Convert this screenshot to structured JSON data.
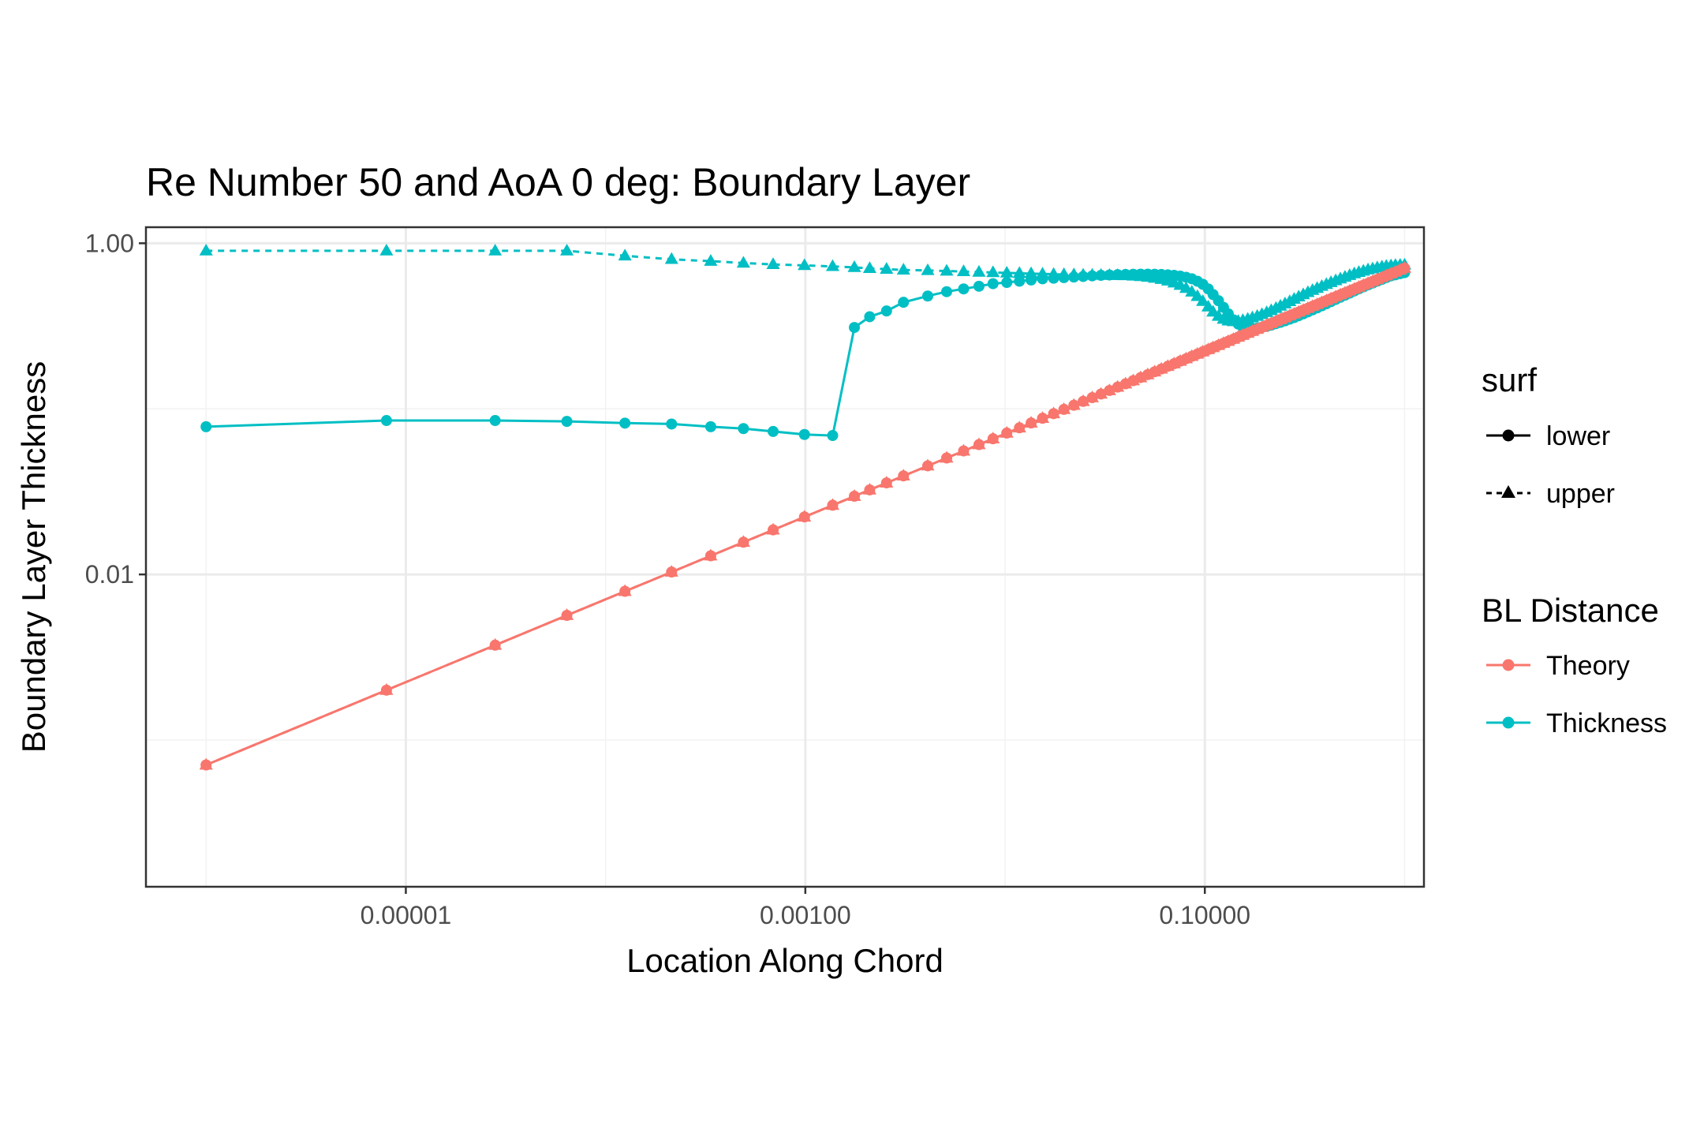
{
  "chart_data": {
    "type": "line",
    "title": "Re Number 50 and AoA 0 deg: Boundary Layer",
    "xlabel": "Location Along Chord",
    "ylabel": "Boundary Layer Thickness",
    "x_scale": "log10",
    "y_scale": "log10",
    "xlim": [
      5e-07,
      1.25
    ],
    "ylim": [
      0.00013,
      1.25
    ],
    "x_ticks": [
      1e-05,
      0.001,
      0.1
    ],
    "x_tick_labels": [
      "0.00001",
      "0.00100",
      "0.10000"
    ],
    "y_ticks": [
      0.01,
      1.0
    ],
    "y_tick_labels": [
      "0.01",
      "1.00"
    ],
    "grid": true,
    "legend_position": "right",
    "legends": [
      {
        "title": "surf",
        "entries": [
          {
            "label": "lower",
            "line": "solid",
            "marker": "circle"
          },
          {
            "label": "upper",
            "line": "dashed",
            "marker": "triangle"
          }
        ]
      },
      {
        "title": "BL Distance",
        "entries": [
          {
            "label": "Theory",
            "color": "#F8766D",
            "marker": "circle"
          },
          {
            "label": "Thickness",
            "color": "#00BFC4",
            "marker": "circle"
          }
        ]
      }
    ],
    "series": [
      {
        "name": "Thickness",
        "surf": "lower",
        "color": "#00BFC4",
        "line": "solid",
        "marker": "circle",
        "x": [
          1e-06,
          8e-06,
          2.8e-05,
          6.4e-05,
          0.000125,
          0.000214,
          0.000336,
          0.00049,
          0.00069,
          0.00099,
          0.00137,
          0.00176,
          0.0021,
          0.00255,
          0.0031,
          0.0041,
          0.0051,
          0.0062,
          0.0074,
          0.0087,
          0.0102,
          0.0118,
          0.0135,
          0.0154,
          0.0175,
          0.0197,
          0.0221,
          0.0246,
          0.0273,
          0.0302,
          0.0333,
          0.0366,
          0.0401,
          0.0438,
          0.0477,
          0.0518,
          0.0561,
          0.0606,
          0.0653,
          0.0702,
          0.0753,
          0.0806,
          0.0861,
          0.0918,
          0.0977,
          0.104,
          0.11,
          0.117,
          0.124,
          0.131,
          0.139,
          0.147,
          0.155,
          0.164,
          0.173,
          0.183,
          0.193,
          0.204,
          0.215,
          0.227,
          0.239,
          0.252,
          0.266,
          0.28,
          0.295,
          0.311,
          0.328,
          0.346,
          0.365,
          0.385,
          0.406,
          0.428,
          0.452,
          0.477,
          0.503,
          0.531,
          0.56,
          0.59,
          0.622,
          0.656,
          0.692,
          0.73,
          0.77,
          0.81,
          0.855,
          0.9,
          0.95,
          1.0
        ],
        "y": [
          0.078,
          0.085,
          0.085,
          0.084,
          0.082,
          0.081,
          0.078,
          0.076,
          0.073,
          0.07,
          0.069,
          0.31,
          0.36,
          0.39,
          0.44,
          0.48,
          0.51,
          0.53,
          0.55,
          0.57,
          0.58,
          0.59,
          0.6,
          0.61,
          0.615,
          0.62,
          0.625,
          0.63,
          0.635,
          0.64,
          0.643,
          0.646,
          0.648,
          0.65,
          0.651,
          0.651,
          0.65,
          0.648,
          0.645,
          0.64,
          0.633,
          0.623,
          0.61,
          0.59,
          0.565,
          0.53,
          0.49,
          0.45,
          0.41,
          0.375,
          0.345,
          0.325,
          0.312,
          0.305,
          0.305,
          0.307,
          0.31,
          0.315,
          0.32,
          0.327,
          0.333,
          0.34,
          0.348,
          0.356,
          0.365,
          0.375,
          0.385,
          0.396,
          0.407,
          0.419,
          0.431,
          0.444,
          0.458,
          0.472,
          0.486,
          0.5,
          0.515,
          0.53,
          0.545,
          0.56,
          0.575,
          0.59,
          0.605,
          0.62,
          0.635,
          0.645,
          0.655,
          0.665
        ]
      },
      {
        "name": "Thickness",
        "surf": "upper",
        "color": "#00BFC4",
        "line": "dashed",
        "marker": "triangle",
        "x": [
          1e-06,
          8e-06,
          2.8e-05,
          6.4e-05,
          0.000125,
          0.000214,
          0.000336,
          0.00049,
          0.00069,
          0.00099,
          0.00137,
          0.00176,
          0.0021,
          0.00255,
          0.0031,
          0.0041,
          0.0051,
          0.0062,
          0.0074,
          0.0087,
          0.0102,
          0.0118,
          0.0135,
          0.0154,
          0.0175,
          0.0197,
          0.0221,
          0.0246,
          0.0273,
          0.0302,
          0.0333,
          0.0366,
          0.0401,
          0.0438,
          0.0477,
          0.0518,
          0.0561,
          0.0606,
          0.0653,
          0.0702,
          0.0753,
          0.0806,
          0.0861,
          0.0918,
          0.0977,
          0.104,
          0.11,
          0.117,
          0.124,
          0.131,
          0.139,
          0.147,
          0.155,
          0.164,
          0.173,
          0.183,
          0.193,
          0.204,
          0.215,
          0.227,
          0.239,
          0.252,
          0.266,
          0.28,
          0.295,
          0.311,
          0.328,
          0.346,
          0.365,
          0.385,
          0.406,
          0.428,
          0.452,
          0.477,
          0.503,
          0.531,
          0.56,
          0.59,
          0.622,
          0.656,
          0.692,
          0.73,
          0.77,
          0.81,
          0.855,
          0.9,
          0.95,
          1.0
        ],
        "y": [
          0.9,
          0.9,
          0.9,
          0.9,
          0.84,
          0.8,
          0.78,
          0.76,
          0.745,
          0.735,
          0.725,
          0.715,
          0.705,
          0.698,
          0.69,
          0.685,
          0.68,
          0.675,
          0.67,
          0.666,
          0.662,
          0.659,
          0.656,
          0.653,
          0.65,
          0.648,
          0.646,
          0.644,
          0.643,
          0.642,
          0.641,
          0.64,
          0.638,
          0.635,
          0.63,
          0.624,
          0.616,
          0.606,
          0.593,
          0.577,
          0.558,
          0.535,
          0.508,
          0.478,
          0.446,
          0.413,
          0.385,
          0.363,
          0.348,
          0.34,
          0.337,
          0.338,
          0.342,
          0.348,
          0.355,
          0.363,
          0.372,
          0.382,
          0.393,
          0.405,
          0.418,
          0.431,
          0.445,
          0.46,
          0.475,
          0.49,
          0.505,
          0.52,
          0.535,
          0.55,
          0.565,
          0.58,
          0.595,
          0.61,
          0.625,
          0.64,
          0.655,
          0.668,
          0.68,
          0.692,
          0.702,
          0.712,
          0.72,
          0.727,
          0.732,
          0.736,
          0.738,
          0.74
        ]
      },
      {
        "name": "Theory",
        "surf": "lower",
        "color": "#F8766D",
        "line": "solid",
        "marker": "circle",
        "x": [
          1e-06,
          8e-06,
          2.8e-05,
          6.4e-05,
          0.000125,
          0.000214,
          0.000336,
          0.00049,
          0.00069,
          0.00099,
          0.00137,
          0.00176,
          0.0021,
          0.00255,
          0.0031,
          0.0041,
          0.0051,
          0.0062,
          0.0074,
          0.0087,
          0.0102,
          0.0118,
          0.0135,
          0.0154,
          0.0175,
          0.0197,
          0.0221,
          0.0246,
          0.0273,
          0.0302,
          0.0333,
          0.0366,
          0.0401,
          0.0438,
          0.0477,
          0.0518,
          0.0561,
          0.0606,
          0.0653,
          0.0702,
          0.0753,
          0.0806,
          0.0861,
          0.0918,
          0.0977,
          0.104,
          0.11,
          0.117,
          0.124,
          0.131,
          0.139,
          0.147,
          0.155,
          0.164,
          0.173,
          0.183,
          0.193,
          0.204,
          0.215,
          0.227,
          0.239,
          0.252,
          0.266,
          0.28,
          0.295,
          0.311,
          0.328,
          0.346,
          0.365,
          0.385,
          0.406,
          0.428,
          0.452,
          0.477,
          0.503,
          0.531,
          0.56,
          0.59,
          0.622,
          0.656,
          0.692,
          0.73,
          0.77,
          0.81,
          0.855,
          0.9,
          0.95,
          1.0
        ],
        "y": [
          0.000707,
          0.002,
          0.00374,
          0.00566,
          0.00791,
          0.01034,
          0.01296,
          0.01565,
          0.01858,
          0.02225,
          0.02618,
          0.02967,
          0.03241,
          0.03571,
          0.03937,
          0.04528,
          0.0505,
          0.05568,
          0.06083,
          0.06597,
          0.07143,
          0.07682,
          0.08216,
          0.08775,
          0.09354,
          0.09925,
          0.10513,
          0.11092,
          0.11685,
          0.1229,
          0.12905,
          0.1353,
          0.14162,
          0.14801,
          0.15446,
          0.16096,
          0.1675,
          0.17409,
          0.18072,
          0.18738,
          0.19407,
          0.20078,
          0.20752,
          0.21428,
          0.22105,
          0.22808,
          0.23452,
          0.24187,
          0.24901,
          0.25594,
          0.26366,
          0.27115,
          0.27839,
          0.28636,
          0.29411,
          0.30249,
          0.31064,
          0.31937,
          0.32787,
          0.3369,
          0.34569,
          0.35497,
          0.36469,
          0.37417,
          0.38406,
          0.39433,
          0.40497,
          0.41593,
          0.4272,
          0.43875,
          0.45056,
          0.4626,
          0.47539,
          0.48837,
          0.5015,
          0.51527,
          0.52915,
          0.54314,
          0.55776,
          0.57271,
          0.58822,
          0.60415,
          0.62048,
          0.6364,
          0.6539,
          0.67082,
          0.6892,
          0.70711
        ]
      },
      {
        "name": "Theory",
        "surf": "upper",
        "color": "#F8766D",
        "line": "dashed",
        "marker": "triangle",
        "x": [
          1e-06,
          8e-06,
          2.8e-05,
          6.4e-05,
          0.000125,
          0.000214,
          0.000336,
          0.00049,
          0.00069,
          0.00099,
          0.00137,
          0.00176,
          0.0021,
          0.00255,
          0.0031,
          0.0041,
          0.0051,
          0.0062,
          0.0074,
          0.0087,
          0.0102,
          0.0118,
          0.0135,
          0.0154,
          0.0175,
          0.0197,
          0.0221,
          0.0246,
          0.0273,
          0.0302,
          0.0333,
          0.0366,
          0.0401,
          0.0438,
          0.0477,
          0.0518,
          0.0561,
          0.0606,
          0.0653,
          0.0702,
          0.0753,
          0.0806,
          0.0861,
          0.0918,
          0.0977,
          0.104,
          0.11,
          0.117,
          0.124,
          0.131,
          0.139,
          0.147,
          0.155,
          0.164,
          0.173,
          0.183,
          0.193,
          0.204,
          0.215,
          0.227,
          0.239,
          0.252,
          0.266,
          0.28,
          0.295,
          0.311,
          0.328,
          0.346,
          0.365,
          0.385,
          0.406,
          0.428,
          0.452,
          0.477,
          0.503,
          0.531,
          0.56,
          0.59,
          0.622,
          0.656,
          0.692,
          0.73,
          0.77,
          0.81,
          0.855,
          0.9,
          0.95,
          1.0
        ],
        "y": [
          0.000707,
          0.002,
          0.00374,
          0.00566,
          0.00791,
          0.01034,
          0.01296,
          0.01565,
          0.01858,
          0.02225,
          0.02618,
          0.02967,
          0.03241,
          0.03571,
          0.03937,
          0.04528,
          0.0505,
          0.05568,
          0.06083,
          0.06597,
          0.07143,
          0.07682,
          0.08216,
          0.08775,
          0.09354,
          0.09925,
          0.10513,
          0.11092,
          0.11685,
          0.1229,
          0.12905,
          0.1353,
          0.14162,
          0.14801,
          0.15446,
          0.16096,
          0.1675,
          0.17409,
          0.18072,
          0.18738,
          0.19407,
          0.20078,
          0.20752,
          0.21428,
          0.22105,
          0.22808,
          0.23452,
          0.24187,
          0.24901,
          0.25594,
          0.26366,
          0.27115,
          0.27839,
          0.28636,
          0.29411,
          0.30249,
          0.31064,
          0.31937,
          0.32787,
          0.3369,
          0.34569,
          0.35497,
          0.36469,
          0.37417,
          0.38406,
          0.39433,
          0.40497,
          0.41593,
          0.4272,
          0.43875,
          0.45056,
          0.4626,
          0.47539,
          0.48837,
          0.5015,
          0.51527,
          0.52915,
          0.54314,
          0.55776,
          0.57271,
          0.58822,
          0.60415,
          0.62048,
          0.6364,
          0.6539,
          0.67082,
          0.6892,
          0.70711
        ]
      }
    ]
  }
}
